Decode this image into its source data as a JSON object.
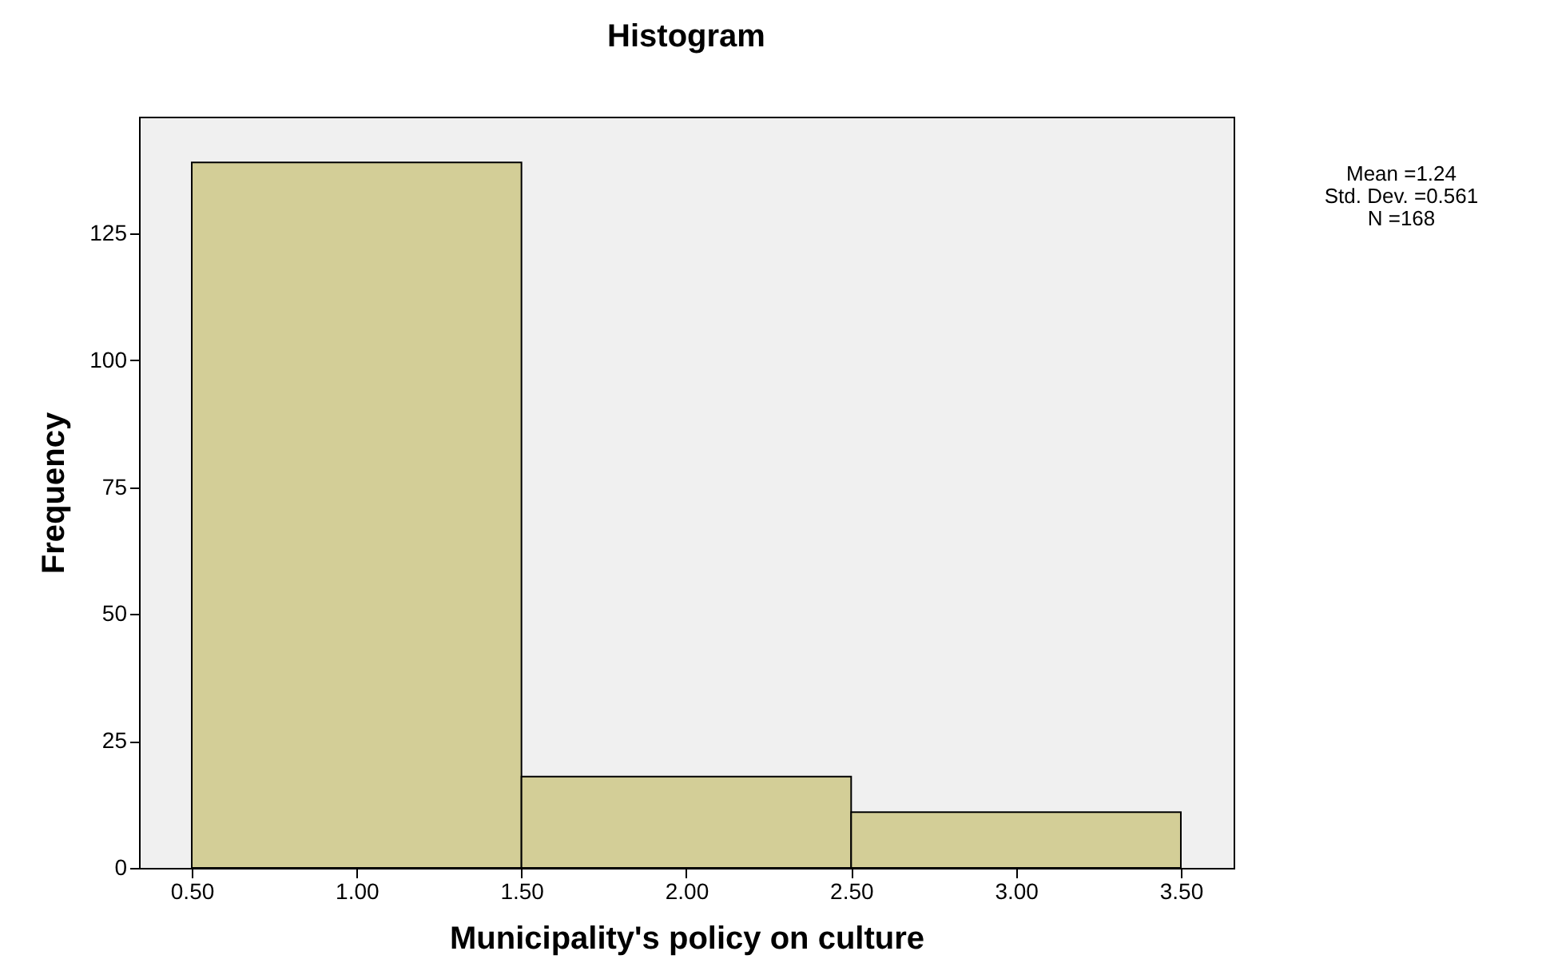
{
  "chart_data": {
    "type": "histogram",
    "title": "Histogram",
    "xlabel": "Municipality's policy on culture",
    "ylabel": "Frequency",
    "bins": [
      0.5,
      1.5,
      2.5,
      3.5
    ],
    "values": [
      139,
      18,
      11
    ],
    "color": "#d3ce97",
    "xlim": [
      0.34,
      3.66
    ],
    "xticks": [
      {
        "value": 0.5,
        "label": "0.50"
      },
      {
        "value": 1.0,
        "label": "1.00"
      },
      {
        "value": 1.5,
        "label": "1.50"
      },
      {
        "value": 2.0,
        "label": "2.00"
      },
      {
        "value": 2.5,
        "label": "2.50"
      },
      {
        "value": 3.0,
        "label": "3.00"
      },
      {
        "value": 3.5,
        "label": "3.50"
      }
    ],
    "ylim": [
      0,
      148
    ],
    "yticks": [
      0,
      25,
      50,
      75,
      100,
      125
    ],
    "grid": false,
    "annotations": [
      "Mean =1.24",
      "Std. Dev. =0.561",
      "N =168"
    ]
  }
}
